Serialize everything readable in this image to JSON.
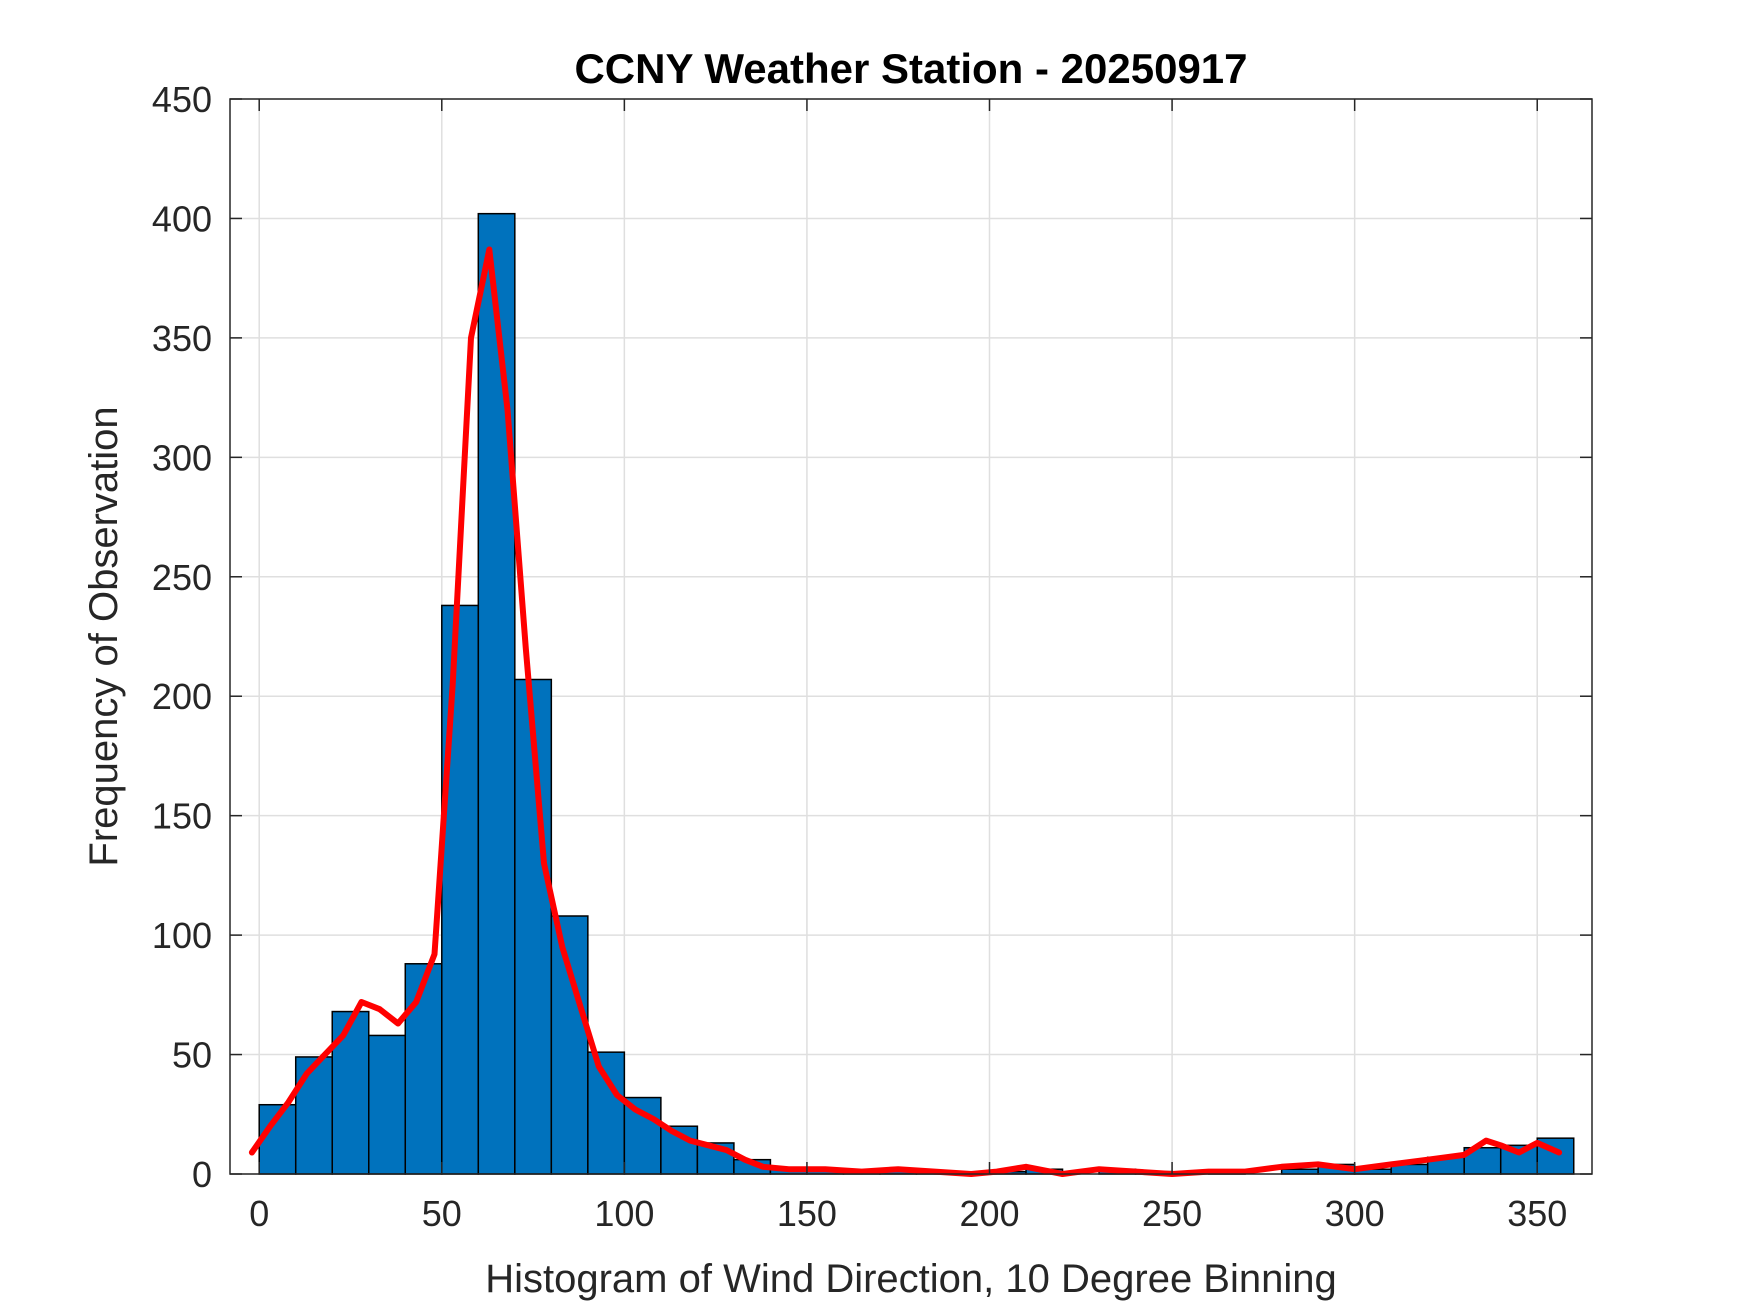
{
  "chart_data": {
    "type": "bar",
    "title": "CCNY Weather Station - 20250917",
    "xlabel": "Histogram of Wind Direction, 10 Degree Binning",
    "ylabel": "Frequency of Observation",
    "xlim": [
      -8,
      365
    ],
    "ylim": [
      0,
      450
    ],
    "grid": true,
    "x_ticks": [
      0,
      50,
      100,
      150,
      200,
      250,
      300,
      350
    ],
    "y_ticks": [
      0,
      50,
      100,
      150,
      200,
      250,
      300,
      350,
      400,
      450
    ],
    "bin_edges": [
      0,
      10,
      20,
      30,
      40,
      50,
      60,
      70,
      80,
      90,
      100,
      110,
      120,
      130,
      140,
      150,
      160,
      170,
      180,
      190,
      200,
      210,
      220,
      230,
      240,
      250,
      260,
      270,
      280,
      290,
      300,
      310,
      320,
      330,
      340,
      350,
      360
    ],
    "values": [
      29,
      49,
      68,
      58,
      88,
      238,
      402,
      207,
      108,
      51,
      32,
      20,
      13,
      6,
      2,
      2,
      1,
      2,
      1,
      0,
      1,
      2,
      0,
      2,
      1,
      0,
      1,
      0,
      2,
      4,
      2,
      4,
      7,
      11,
      12,
      15
    ],
    "bar_color": "#0072BD",
    "bar_edge_color": "#000000",
    "density_curve": {
      "color": "#FF0000",
      "x": [
        -2,
        3,
        8,
        13,
        18,
        23,
        28,
        33,
        38,
        43,
        48,
        53,
        58,
        63,
        68,
        73,
        78,
        83,
        88,
        93,
        98,
        103,
        108,
        113,
        118,
        123,
        128,
        133,
        138,
        145,
        155,
        165,
        175,
        185,
        195,
        202,
        210,
        220,
        230,
        240,
        250,
        260,
        270,
        280,
        290,
        300,
        310,
        320,
        330,
        336,
        340,
        345,
        350,
        356
      ],
      "y": [
        9,
        20,
        30,
        42,
        50,
        58,
        72,
        69,
        63,
        72,
        92,
        205,
        350,
        387,
        320,
        220,
        130,
        95,
        70,
        45,
        33,
        27,
        23,
        18,
        14,
        12,
        10,
        6,
        3,
        2,
        2,
        1,
        2,
        1,
        0,
        1,
        3,
        0,
        2,
        1,
        0,
        1,
        1,
        3,
        4,
        2,
        4,
        6,
        8,
        14,
        12,
        9,
        13,
        9
      ]
    }
  }
}
